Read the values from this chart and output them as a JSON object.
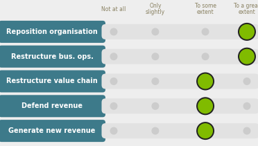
{
  "rows": [
    {
      "label": "Reposition organisation",
      "value": 3
    },
    {
      "label": "Restructure bus. ops.",
      "value": 3
    },
    {
      "label": "Restructure value chain",
      "value": 2
    },
    {
      "label": "Defend revenue",
      "value": 2
    },
    {
      "label": "Generate new revenue",
      "value": 2
    }
  ],
  "col_labels": [
    "Not at all",
    "Only\nslightly",
    "To some\nextent",
    "To a great\nextent"
  ],
  "label_bg_color": "#3d7a8a",
  "label_text_color": "#ffffff",
  "slider_track_color": "#e2e2e2",
  "slider_dot_color": "#cccccc",
  "active_dot_color": "#80bb00",
  "active_dot_outline": "#222222",
  "background_color": "#eeeeee",
  "header_text_color": "#888060",
  "header_fontsize": 5.5,
  "label_fontsize": 7.0,
  "fig_width": 3.72,
  "fig_height": 2.11,
  "dpi": 100
}
